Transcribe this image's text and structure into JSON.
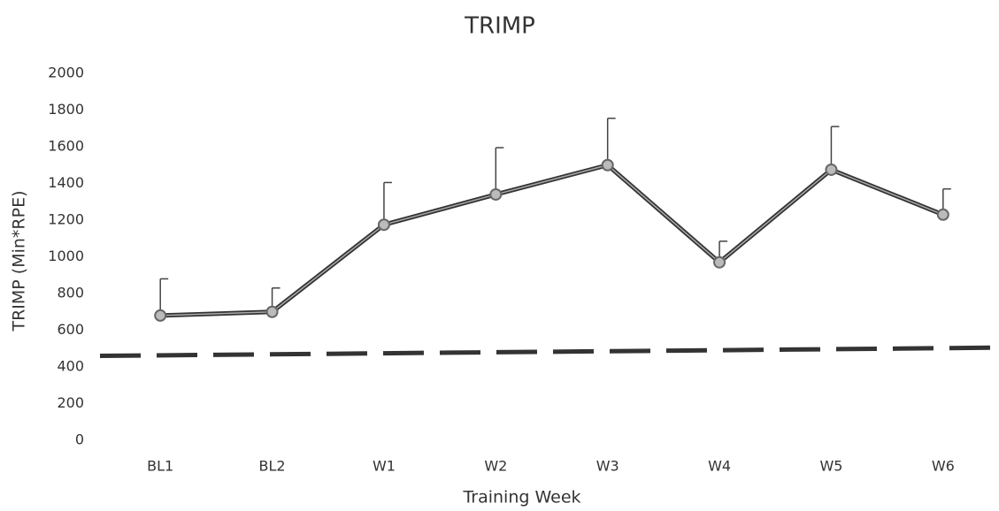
{
  "chart_data": {
    "type": "line",
    "title": "TRIMP",
    "x_label": "Training Week",
    "y_label": "TRIMP (Min*RPE)",
    "categories": [
      "BL1",
      "BL2",
      "W1",
      "W2",
      "W3",
      "W4",
      "W5",
      "W6"
    ],
    "series": [
      {
        "name": "TRIMP",
        "color": "#666666",
        "values": [
          680,
          700,
          1175,
          1340,
          1500,
          970,
          1475,
          1230
        ],
        "errors": [
          200,
          130,
          230,
          255,
          255,
          115,
          235,
          140
        ]
      }
    ],
    "reference_line": {
      "start": 460,
      "end": 505,
      "color": "#333333",
      "dashed": true
    },
    "ylim": [
      0,
      2000
    ],
    "yticks": [
      0,
      200,
      400,
      600,
      800,
      1000,
      1200,
      1400,
      1600,
      1800,
      2000
    ],
    "grid": false
  }
}
